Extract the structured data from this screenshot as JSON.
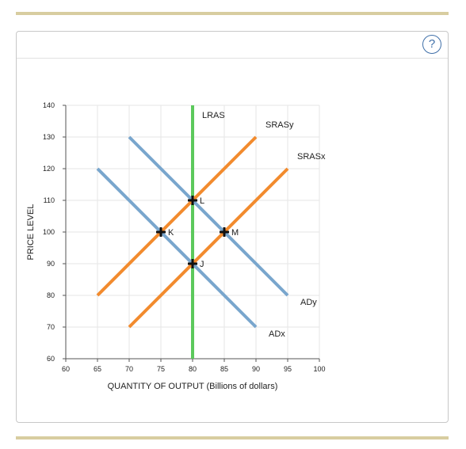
{
  "help": {
    "label": "?"
  },
  "colors": {
    "lras": "#5cc95c",
    "sras": "#f28b2e",
    "ad": "#79a6cd",
    "rule": "#d8cda0",
    "help": "#3f6fa8"
  },
  "icons": {
    "help": "question-mark-circle-icon",
    "point": "plus-marker-icon"
  },
  "chart_data": {
    "type": "line",
    "title": "",
    "xlabel": "QUANTITY OF OUTPUT (Billions of dollars)",
    "ylabel": "PRICE LEVEL",
    "xlim": [
      60,
      100
    ],
    "ylim": [
      60,
      140
    ],
    "xticks": [
      60,
      65,
      70,
      75,
      80,
      85,
      90,
      95,
      100
    ],
    "yticks": [
      60,
      70,
      80,
      90,
      100,
      110,
      120,
      130,
      140
    ],
    "grid": true,
    "series": [
      {
        "name": "LRAS",
        "color": "#5cc95c",
        "points": [
          [
            80,
            60
          ],
          [
            80,
            140
          ]
        ],
        "label_at": [
          81.5,
          136
        ]
      },
      {
        "name": "SRASy",
        "color": "#f28b2e",
        "points": [
          [
            65,
            80
          ],
          [
            90,
            130
          ]
        ],
        "label_at": [
          91.5,
          133
        ]
      },
      {
        "name": "SRASx",
        "color": "#f28b2e",
        "points": [
          [
            70,
            70
          ],
          [
            95,
            120
          ]
        ],
        "label_at": [
          96.5,
          123
        ]
      },
      {
        "name": "ADy",
        "color": "#79a6cd",
        "points": [
          [
            70,
            130
          ],
          [
            95,
            80
          ]
        ],
        "label_at": [
          97,
          77
        ]
      },
      {
        "name": "ADx",
        "color": "#79a6cd",
        "points": [
          [
            65,
            120
          ],
          [
            90,
            70
          ]
        ],
        "label_at": [
          92,
          67
        ]
      }
    ],
    "points": [
      {
        "name": "L",
        "x": 80,
        "y": 110
      },
      {
        "name": "K",
        "x": 75,
        "y": 100
      },
      {
        "name": "M",
        "x": 85,
        "y": 100
      },
      {
        "name": "J",
        "x": 80,
        "y": 90
      }
    ]
  }
}
